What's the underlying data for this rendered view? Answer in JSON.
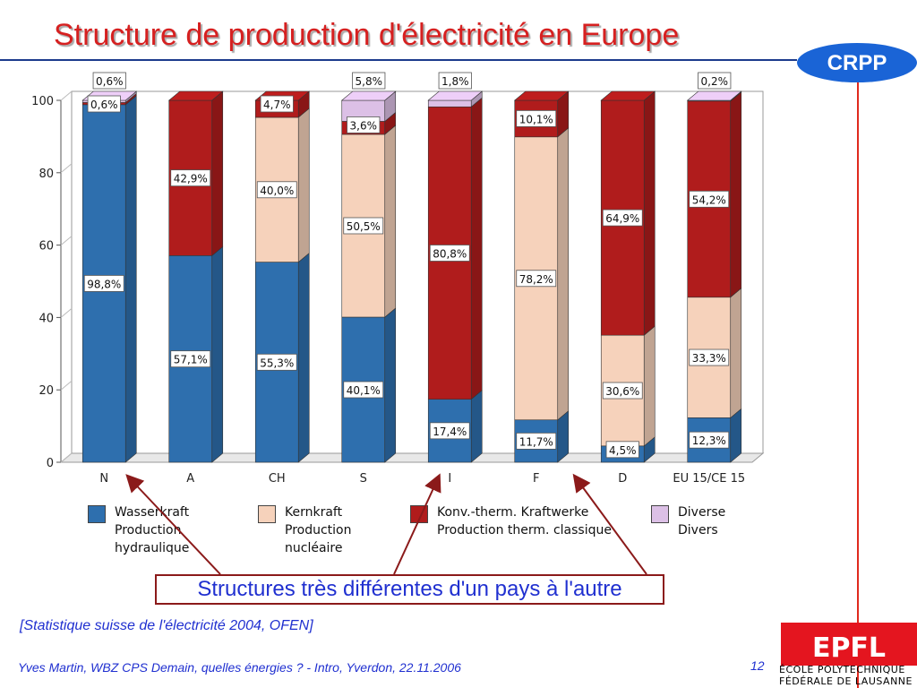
{
  "slide": {
    "title": "Structure de production d'électricité en Europe",
    "callout": "Structures très différentes d'un pays à l'autre",
    "source": "[Statistique suisse de l'électricité 2004, OFEN]",
    "footer": "Yves Martin, WBZ CPS Demain, quelles énergies ? - Intro, Yverdon, 22.11.2006",
    "page_number": "12"
  },
  "logos": {
    "crpp": "CRPP",
    "epfl": "EPFL",
    "epfl_line1": "ÉCOLE POLYTECHNIQUE",
    "epfl_line2": "FÉDÉRALE DE LAUSANNE"
  },
  "colors": {
    "hydro": "#2e6fae",
    "nuclear": "#f6d2bb",
    "thermal": "#b01c1c",
    "diverse": "#dcc0e6",
    "title": "#d62020",
    "accent_blue": "#1c3a8c",
    "text_blue": "#2030d0"
  },
  "legend": [
    {
      "key": "hydro",
      "line1": "Wasserkraft",
      "line2": "Production",
      "line3": "hydraulique"
    },
    {
      "key": "nuclear",
      "line1": "Kernkraft",
      "line2": "Production",
      "line3": "nucléaire"
    },
    {
      "key": "thermal",
      "line1": "Konv.-therm. Kraftwerke",
      "line2": "Production therm. classique",
      "line3": ""
    },
    {
      "key": "diverse",
      "line1": "Diverse",
      "line2": "Divers",
      "line3": ""
    }
  ],
  "chart_data": {
    "type": "bar",
    "stacked": true,
    "categories": [
      "N",
      "A",
      "CH",
      "S",
      "I",
      "F",
      "D",
      "EU 15/CE 15"
    ],
    "ylim": [
      0,
      100
    ],
    "yticks": [
      0,
      20,
      40,
      60,
      80,
      100
    ],
    "series": [
      {
        "key": "hydro",
        "values": [
          98.8,
          57.1,
          55.3,
          40.1,
          17.4,
          11.7,
          4.5,
          12.3
        ]
      },
      {
        "key": "nuclear",
        "values": [
          0,
          0,
          40.0,
          50.5,
          0,
          78.2,
          30.6,
          33.3
        ]
      },
      {
        "key": "thermal",
        "values": [
          0.6,
          42.9,
          4.7,
          3.6,
          80.8,
          10.1,
          64.9,
          54.2
        ]
      },
      {
        "key": "diverse",
        "values": [
          0.6,
          0,
          0,
          5.8,
          1.8,
          0,
          0,
          0.2
        ]
      }
    ],
    "labels": [
      [
        "98,8%",
        "",
        "0,6%",
        "0,6%"
      ],
      [
        "57,1%",
        "",
        "42,9%",
        ""
      ],
      [
        "55,3%",
        "40,0%",
        "4,7%",
        ""
      ],
      [
        "40,1%",
        "50,5%",
        "3,6%",
        "5,8%"
      ],
      [
        "17,4%",
        "",
        "80,8%",
        "1,8%"
      ],
      [
        "11,7%",
        "78,2%",
        "10,1%",
        ""
      ],
      [
        "4,5%",
        "30,6%",
        "64,9%",
        ""
      ],
      [
        "12,3%",
        "33,3%",
        "54,2%",
        "0,2%"
      ]
    ]
  }
}
